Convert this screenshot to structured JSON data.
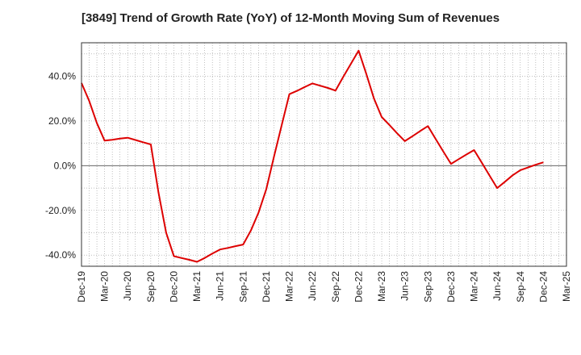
{
  "chart_data": {
    "type": "line",
    "title": "[3849]  Trend of Growth Rate (YoY) of 12-Month Moving Sum of Revenues",
    "xlabel": "",
    "ylabel": "",
    "y_unit": "%",
    "ylim": [
      -45,
      55
    ],
    "y_ticks": [
      40,
      20,
      0,
      -20,
      -40
    ],
    "y_tick_labels": [
      "40.0%",
      "20.0%",
      "0.0%",
      "-20.0%",
      "-40.0%"
    ],
    "x_tick_labels": [
      "Dec-19",
      "Mar-20",
      "Jun-20",
      "Sep-20",
      "Dec-20",
      "Mar-21",
      "Jun-21",
      "Sep-21",
      "Dec-21",
      "Mar-22",
      "Jun-22",
      "Sep-22",
      "Dec-22",
      "Mar-23",
      "Jun-23",
      "Sep-23",
      "Dec-23",
      "Mar-24",
      "Jun-24",
      "Sep-24",
      "Dec-24",
      "Mar-25"
    ],
    "grid": true,
    "legend": "none",
    "line_color": "#dd0000",
    "series": [
      {
        "x": [
          "Dec-19",
          "Jan-20",
          "Feb-20",
          "Mar-20",
          "Apr-20",
          "May-20",
          "Jun-20",
          "Jul-20",
          "Aug-20",
          "Sep-20",
          "Oct-20",
          "Nov-20",
          "Dec-20",
          "Jan-21",
          "Feb-21",
          "Mar-21",
          "Apr-21",
          "May-21",
          "Jun-21",
          "Jul-21",
          "Aug-21",
          "Sep-21",
          "Oct-21",
          "Nov-21",
          "Dec-21",
          "Jan-22",
          "Feb-22",
          "Mar-22",
          "Apr-22",
          "May-22",
          "Jun-22",
          "Jul-22",
          "Aug-22",
          "Sep-22",
          "Oct-22",
          "Nov-22",
          "Dec-22",
          "Jan-23",
          "Feb-23",
          "Mar-23",
          "Apr-23",
          "May-23",
          "Jun-23",
          "Jul-23",
          "Aug-23",
          "Sep-23",
          "Oct-23",
          "Nov-23",
          "Dec-23",
          "Jan-24",
          "Feb-24",
          "Mar-24",
          "Apr-24",
          "May-24",
          "Jun-24",
          "Jul-24",
          "Aug-24",
          "Sep-24",
          "Oct-24",
          "Nov-24",
          "Dec-24"
        ],
        "values": [
          37.0,
          29.0,
          19.0,
          11.2,
          11.6,
          12.1,
          12.5,
          11.5,
          10.5,
          9.5,
          -12.0,
          -30.0,
          -40.5,
          -41.3,
          -42.1,
          -43.0,
          -41.3,
          -39.3,
          -37.5,
          -36.8,
          -36.0,
          -35.3,
          -29.0,
          -21.0,
          -10.5,
          4.0,
          18.0,
          32.0,
          33.5,
          35.2,
          36.8,
          35.8,
          34.8,
          33.6,
          39.7,
          45.6,
          51.5,
          41.0,
          30.0,
          21.8,
          18.2,
          14.5,
          11.0,
          13.2,
          15.5,
          17.7,
          12.0,
          6.3,
          0.8,
          2.9,
          5.0,
          7.0,
          1.3,
          -4.4,
          -10.0,
          -7.2,
          -4.3,
          -2.0,
          -0.8,
          0.4,
          1.5
        ]
      }
    ]
  }
}
